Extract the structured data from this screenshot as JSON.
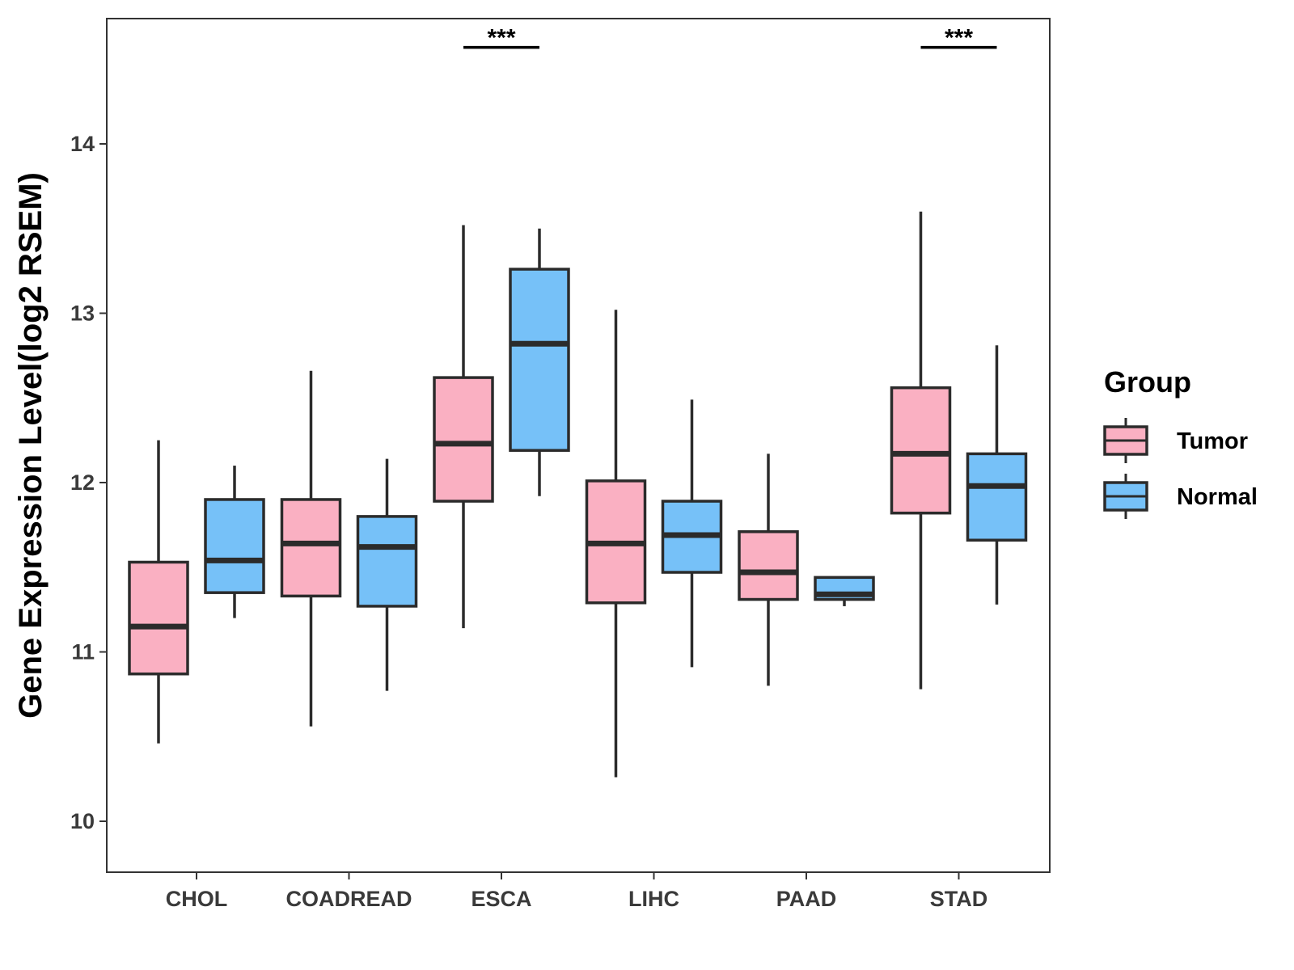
{
  "chart_data": {
    "type": "boxplot",
    "title": "",
    "xlabel": "",
    "ylabel": "Gene Expression Level(log2 RSEM)",
    "ylim": [
      9.75,
      14.8
    ],
    "yticks": [
      10,
      11,
      12,
      13,
      14
    ],
    "categories": [
      "CHOL",
      "COADREAD",
      "ESCA",
      "LIHC",
      "PAAD",
      "STAD"
    ],
    "legend": {
      "title": "Group",
      "position": "right",
      "entries": [
        {
          "name": "Tumor",
          "color": "#FAB0C2"
        },
        {
          "name": "Normal",
          "color": "#76C1F8"
        }
      ]
    },
    "series": [
      {
        "name": "Tumor",
        "color": "#FAB0C2",
        "boxes": [
          {
            "min": 10.46,
            "q1": 10.87,
            "median": 11.15,
            "q3": 11.53,
            "max": 12.25
          },
          {
            "min": 10.56,
            "q1": 11.33,
            "median": 11.64,
            "q3": 11.9,
            "max": 12.66
          },
          {
            "min": 11.14,
            "q1": 11.89,
            "median": 12.23,
            "q3": 12.62,
            "max": 13.52
          },
          {
            "min": 10.26,
            "q1": 11.29,
            "median": 11.64,
            "q3": 12.01,
            "max": 13.02
          },
          {
            "min": 10.8,
            "q1": 11.31,
            "median": 11.47,
            "q3": 11.71,
            "max": 12.17
          },
          {
            "min": 10.78,
            "q1": 11.82,
            "median": 12.17,
            "q3": 12.56,
            "max": 13.6
          }
        ]
      },
      {
        "name": "Normal",
        "color": "#76C1F8",
        "boxes": [
          {
            "min": 11.2,
            "q1": 11.35,
            "median": 11.54,
            "q3": 11.9,
            "max": 12.1
          },
          {
            "min": 10.77,
            "q1": 11.27,
            "median": 11.62,
            "q3": 11.8,
            "max": 12.14
          },
          {
            "min": 11.92,
            "q1": 12.19,
            "median": 12.82,
            "q3": 13.26,
            "max": 13.5
          },
          {
            "min": 10.91,
            "q1": 11.47,
            "median": 11.69,
            "q3": 11.89,
            "max": 12.49
          },
          {
            "min": 11.27,
            "q1": 11.31,
            "median": 11.34,
            "q3": 11.44,
            "max": 11.44
          },
          {
            "min": 11.28,
            "q1": 11.66,
            "median": 11.98,
            "q3": 12.17,
            "max": 12.81
          }
        ]
      }
    ],
    "annotations": [
      {
        "category": "ESCA",
        "label": "***",
        "y": 14.57
      },
      {
        "category": "STAD",
        "label": "***",
        "y": 14.57
      }
    ]
  }
}
